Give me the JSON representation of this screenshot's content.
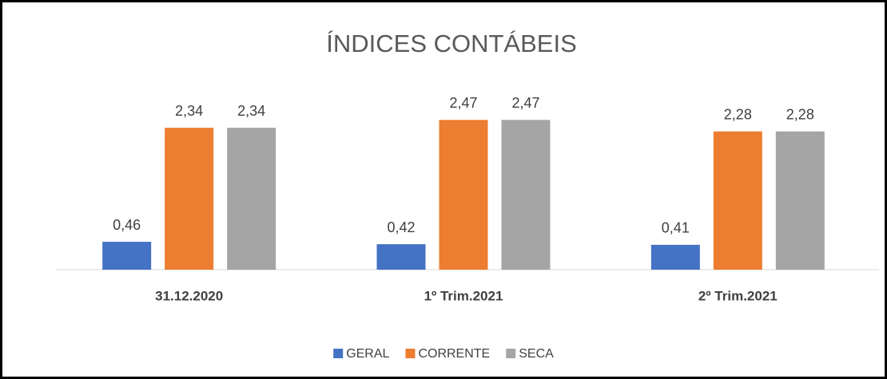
{
  "chart_data": {
    "type": "bar",
    "title": "ÍNDICES CONTÁBEIS",
    "categories": [
      "31.12.2020",
      "1º Trim.2021",
      "2º Trim.2021"
    ],
    "series": [
      {
        "name": "GERAL",
        "color": "#4472c4",
        "values": [
          0.46,
          0.42,
          0.41
        ],
        "value_labels": [
          "0,46",
          "0,42",
          "0,41"
        ]
      },
      {
        "name": "CORRENTE",
        "color": "#ed7d31",
        "values": [
          2.34,
          2.47,
          2.28
        ],
        "value_labels": [
          "2,34",
          "2,47",
          "2,28"
        ]
      },
      {
        "name": "SECA",
        "color": "#a5a5a5",
        "values": [
          2.34,
          2.47,
          2.28
        ],
        "value_labels": [
          "2,34",
          "2,47",
          "2,28"
        ]
      }
    ],
    "ylim": [
      0,
      3
    ],
    "legend": "bottom"
  }
}
